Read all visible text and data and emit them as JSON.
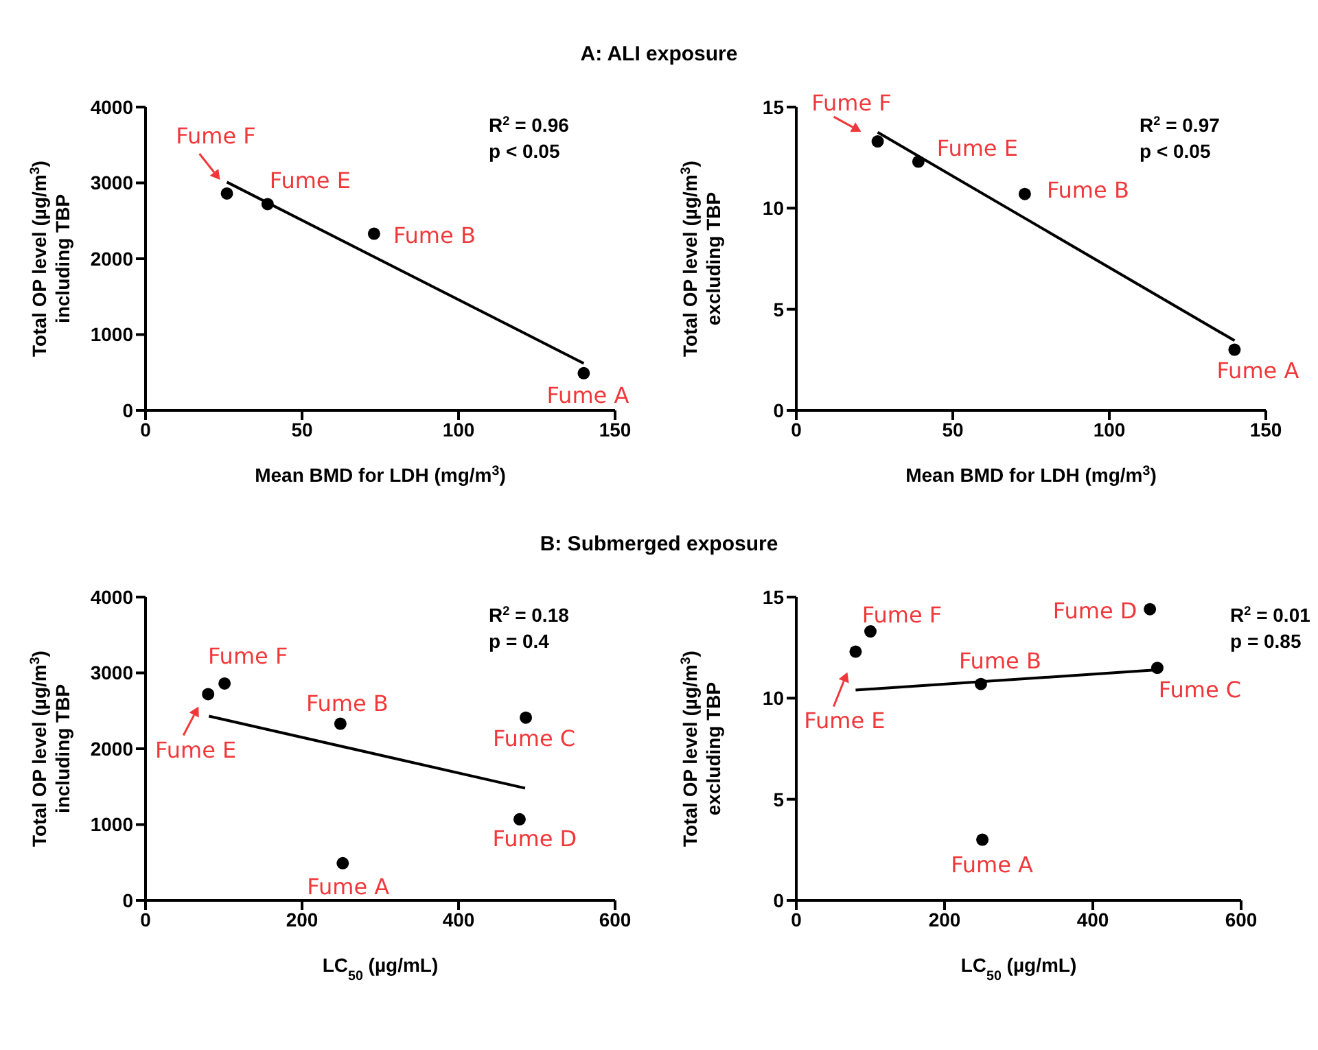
{
  "chart_data": [
    {
      "type": "scatter",
      "title": "A: ALI exposure",
      "xlabel": "Mean BMD for LDH (mg/m$^{3}$)",
      "ylabel": "Total OP level (µg/m$^{3}$)\nincluding TBP",
      "xlim": [
        0,
        150
      ],
      "xticks": [
        0,
        50,
        100,
        150
      ],
      "ylim": [
        0,
        4000
      ],
      "yticks": [
        0,
        1000,
        2000,
        3000,
        4000
      ],
      "grid": false,
      "marker": "circle",
      "series": [
        {
          "color": "#000000",
          "x": [
            26,
            39,
            73,
            140
          ],
          "values": [
            2860,
            2720,
            2330,
            490
          ]
        },
        {
          "type": "line",
          "color": "#000000",
          "marker": "none",
          "x": [
            26,
            140
          ],
          "values": [
            3010,
            620
          ]
        }
      ],
      "annotations": [
        "R$^{2}$ = 0.96",
        "p < 0.05",
        {
          "text": "Fume F",
          "x": 26,
          "y": 2860
        },
        {
          "text": "Fume E",
          "x": 39,
          "y": 2720
        },
        {
          "text": "Fume B",
          "x": 73,
          "y": 2330
        },
        {
          "text": "Fume A",
          "x": 140,
          "y": 490
        }
      ]
    },
    {
      "type": "scatter",
      "xlabel": "Mean BMD for LDH (mg/m$^{3}$)",
      "ylabel": "Total OP level (µg/m$^{3}$)\nexcluding TBP",
      "xlim": [
        0,
        150
      ],
      "xticks": [
        0,
        50,
        100,
        150
      ],
      "ylim": [
        0,
        15
      ],
      "yticks": [
        0,
        5,
        10,
        15
      ],
      "grid": false,
      "marker": "circle",
      "series": [
        {
          "color": "#000000",
          "x": [
            26,
            39,
            73,
            140
          ],
          "values": [
            13.3,
            12.3,
            10.7,
            3.0
          ]
        },
        {
          "type": "line",
          "color": "#000000",
          "marker": "none",
          "x": [
            26,
            140
          ],
          "values": [
            13.75,
            3.45
          ]
        }
      ],
      "annotations": [
        "R$^{2}$ = 0.97",
        "p < 0.05",
        {
          "text": "Fume F",
          "x": 26,
          "y": 13.3
        },
        {
          "text": "Fume E",
          "x": 39,
          "y": 12.3
        },
        {
          "text": "Fume B",
          "x": 73,
          "y": 10.7
        },
        {
          "text": "Fume A",
          "x": 140,
          "y": 3.0
        }
      ]
    },
    {
      "type": "scatter",
      "title": "B: Submerged exposure",
      "xlabel": "LC$_{50}$ (µg/mL)",
      "ylabel": "Total OP level (µg/m$^{3}$)\nincluding TBP",
      "xlim": [
        0,
        600
      ],
      "xticks": [
        0,
        200,
        400,
        600
      ],
      "ylim": [
        0,
        4000
      ],
      "yticks": [
        0,
        1000,
        2000,
        3000,
        4000
      ],
      "grid": false,
      "marker": "circle",
      "series": [
        {
          "color": "#000000",
          "x": [
            80,
            101,
            249,
            252,
            486,
            478
          ],
          "values": [
            2720,
            2860,
            2330,
            490,
            2410,
            1070
          ]
        },
        {
          "type": "line",
          "color": "#000000",
          "marker": "none",
          "x": [
            81,
            485
          ],
          "values": [
            2430,
            1480
          ]
        }
      ],
      "annotations": [
        "R$^{2}$ = 0.18",
        "p = 0.4",
        {
          "text": "Fume E",
          "x": 80,
          "y": 2720
        },
        {
          "text": "Fume F",
          "x": 101,
          "y": 2860
        },
        {
          "text": "Fume B",
          "x": 249,
          "y": 2330
        },
        {
          "text": "Fume A",
          "x": 252,
          "y": 490
        },
        {
          "text": "Fume C",
          "x": 486,
          "y": 2410
        },
        {
          "text": "Fume D",
          "x": 478,
          "y": 1070
        }
      ]
    },
    {
      "type": "scatter",
      "xlabel": "LC$_{50}$ (µg/mL)",
      "ylabel": "Total OP level (µg/m$^{3}$)\nexcluding TBP",
      "xlim": [
        0,
        600
      ],
      "xticks": [
        0,
        200,
        400,
        600
      ],
      "ylim": [
        0,
        15
      ],
      "yticks": [
        0,
        5,
        10,
        15
      ],
      "grid": false,
      "marker": "circle",
      "series": [
        {
          "color": "#000000",
          "x": [
            80,
            100,
            249,
            251,
            477,
            487
          ],
          "values": [
            12.3,
            13.3,
            10.7,
            3.0,
            14.4,
            11.5
          ]
        },
        {
          "type": "line",
          "color": "#000000",
          "marker": "none",
          "x": [
            80,
            487
          ],
          "values": [
            10.4,
            11.4
          ]
        }
      ],
      "annotations": [
        "R$^{2}$ = 0.01",
        "p = 0.85",
        {
          "text": "Fume E",
          "x": 80,
          "y": 12.3
        },
        {
          "text": "Fume F",
          "x": 100,
          "y": 13.3
        },
        {
          "text": "Fume B",
          "x": 249,
          "y": 10.7
        },
        {
          "text": "Fume A",
          "x": 251,
          "y": 3.0
        },
        {
          "text": "Fume D",
          "x": 477,
          "y": 14.4
        },
        {
          "text": "Fume C",
          "x": 487,
          "y": 11.5
        }
      ]
    }
  ]
}
